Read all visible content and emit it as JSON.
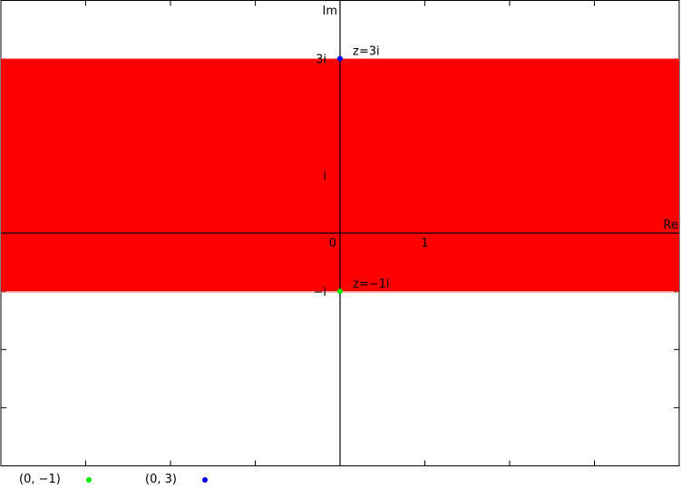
{
  "chart_data": {
    "type": "scatter",
    "title": "",
    "xlabel": "Re",
    "ylabel": "Im",
    "xlim": [
      -4,
      4
    ],
    "ylim": [
      -4,
      4
    ],
    "grid": false,
    "legend_position": "bottom",
    "region": {
      "kind": "horizontal-band",
      "y_min": -1,
      "y_max": 3,
      "color": "#ff0000"
    },
    "axis_tick_labels": {
      "origin": "0",
      "x": [
        {
          "value": 1,
          "label": "1"
        }
      ],
      "y": [
        {
          "value": 3,
          "label": "3i"
        },
        {
          "value": 1,
          "label": "i"
        },
        {
          "value": -1,
          "label": "−i"
        }
      ]
    },
    "series": [
      {
        "name": "(0, −1)",
        "color": "#00ee00",
        "points": [
          {
            "x": 0,
            "y": -1
          }
        ],
        "annotation": "z=−1i"
      },
      {
        "name": "(0, 3)",
        "color": "#0000ee",
        "points": [
          {
            "x": 0,
            "y": 3
          }
        ],
        "annotation": "z=3i"
      }
    ]
  }
}
